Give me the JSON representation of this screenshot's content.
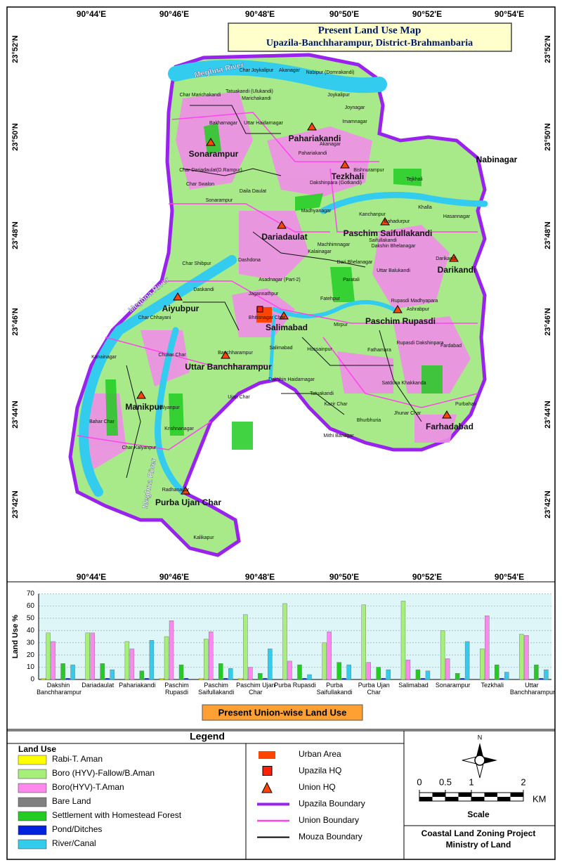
{
  "map": {
    "title": "Present Land Use  Map",
    "subtitle": "Upazila-Banchharampur, District-Brahmanbaria",
    "lon_labels": [
      "90°44'E",
      "90°46'E",
      "90°48'E",
      "90°50'E",
      "90°52'E",
      "90°54'E"
    ],
    "lat_labels": [
      "23°52'N",
      "23°50'N",
      "23°48'N",
      "23°46'N",
      "23°44'N",
      "23°42'N"
    ],
    "rivers": [
      "Meghna River",
      "Meghna River",
      "Meghna River"
    ],
    "neighbor": "Nabinagar",
    "unions": [
      "Pahariakandi",
      "Sonarampur",
      "Dariadaulat",
      "Tezkhali",
      "Paschim Saifullakandi",
      "Darikandi",
      "Aiyubpur",
      "Salimabad",
      "Paschim Rupasdi",
      "Uttar Banchharampur",
      "Manikpur",
      "Farhadabad",
      "Purba Ujan Char"
    ],
    "mouzas": [
      "Char Joykalipur",
      "Akanagar",
      "Nabipur (Domrakandi)",
      "Tatuakandi (Ulukandi)",
      "Marichakandi",
      "Joykalipur",
      "Char Marichakandi",
      "Joynagar",
      "Bakharnagar",
      "Uttar Haidarnagar",
      "Imamnagar",
      "Akanagar",
      "Pahariakandi",
      "Char Dariadaulat(D.Rampur)",
      "Char Swalon",
      "Sonarampur",
      "Daila Daulat",
      "Bishnurampur",
      "Dakshinpara (Gotkandi)",
      "Tejkhali",
      "Madhyanagar",
      "Khalla",
      "Hasannagar",
      "Kanchanpur",
      "Bahadurpur",
      "Saifullakandi",
      "Dakshin Bhelanagar",
      "Machhimnagar",
      "Kalainagar",
      "Dari Bhelanagar",
      "Char Shibpur",
      "Dashdona",
      "Darikandi",
      "Uttar Balukandi",
      "Paratali",
      "Daskandi",
      "Asadnagar (Part-2)",
      "Jagannathpur",
      "Fatehpur",
      "Rupasdi Madhyapara",
      "Ashrabpur",
      "Char Chhayani",
      "Bhitisnagar Char",
      "Mirpur",
      "Rupasdi Dakshinpara",
      "Fardabad",
      "Fathamara",
      "Hossainpur",
      "Salimabad",
      "Chuliar Char",
      "Banchharampur",
      "Kanainagar",
      "Satdona Khakkanda",
      "Dakshin Haidarnagar",
      "Tatuakandi",
      "Ujan Char",
      "Kalyanpur",
      "Kazir Char",
      "Bahar Char",
      "Jhunar Char",
      "Krishnanagar",
      "Bhurbhuria",
      "Purbahati",
      "Mithi Banagar",
      "Char Kalyanpur",
      "Radhanagar",
      "Kalikapur"
    ]
  },
  "chart_data": {
    "type": "bar",
    "title": "Present Union-wise Land Use",
    "y_label": "Land Use %",
    "categories": [
      "Dakshin Banchharampur",
      "Dariadaulat",
      "Pahariakandi",
      "Paschim Rupasdi",
      "Paschim Saifullakandi",
      "Paschim Ujan Char",
      "Purba Rupasdi",
      "Purba Saifullakandi",
      "Purba Ujan Char",
      "Salimabad",
      "Sonarampur",
      "Tezkhali",
      "Uttar Banchharampur"
    ],
    "ylim": [
      0,
      70
    ],
    "yticks": [
      0,
      10,
      20,
      30,
      40,
      50,
      60,
      70
    ],
    "grid": true,
    "series": [
      {
        "name": "Rabi-T. Aman",
        "color": "#ffff00",
        "values": [
          1,
          0,
          0,
          1,
          1,
          1,
          0,
          0,
          0,
          0,
          0,
          0,
          0
        ]
      },
      {
        "name": "Boro (HYV)-Fallow/B.Aman",
        "color": "#a6f07a",
        "values": [
          38,
          38,
          31,
          35,
          33,
          53,
          62,
          30,
          61,
          64,
          40,
          25,
          37
        ]
      },
      {
        "name": "Boro(HYV)-T.Aman",
        "color": "#ff88ee",
        "values": [
          31,
          38,
          25,
          48,
          39,
          10,
          15,
          39,
          14,
          16,
          17,
          52,
          36
        ]
      },
      {
        "name": "Bare Land",
        "color": "#808080",
        "values": [
          0,
          0,
          0,
          0,
          0,
          0,
          0,
          0,
          0,
          0,
          0,
          0,
          0
        ]
      },
      {
        "name": "Settlement with Homestead Forest",
        "color": "#22cc22",
        "values": [
          13,
          13,
          7,
          12,
          13,
          5,
          12,
          14,
          10,
          8,
          5,
          12,
          12
        ]
      },
      {
        "name": "Pond/Ditches",
        "color": "#0022dd",
        "values": [
          1,
          1,
          1,
          1,
          1,
          1,
          1,
          1,
          1,
          1,
          1,
          1,
          1
        ]
      },
      {
        "name": "River/Canal",
        "color": "#33ccee",
        "values": [
          12,
          8,
          32,
          0,
          9,
          25,
          4,
          12,
          8,
          7,
          31,
          6,
          8
        ]
      }
    ]
  },
  "legend": {
    "title": "Legend",
    "land_use_title": "Land Use",
    "items": [
      "Urban Area",
      "Upazila HQ",
      "Union HQ",
      "Upazila Boundary",
      "Union Boundary",
      "Mouza Boundary"
    ],
    "north": "N",
    "scale_ticks": [
      0,
      0.5,
      1,
      2
    ],
    "scale_unit": "KM",
    "scale_title": "Scale",
    "credit": [
      "Coastal Land Zoning Project",
      "Ministry of Land"
    ]
  }
}
